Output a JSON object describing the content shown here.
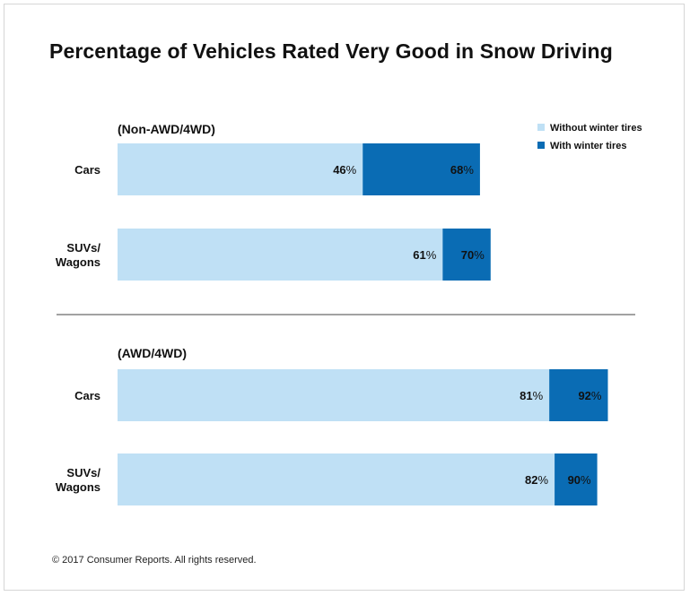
{
  "title": "Percentage of Vehicles Rated Very Good in Snow Driving",
  "footer": "© 2017 Consumer Reports. All rights reserved.",
  "colors": {
    "without": "#bfe0f5",
    "with": "#0a6cb4"
  },
  "legend": {
    "position": "top-right"
  },
  "chart_data": {
    "type": "bar",
    "orientation": "horizontal",
    "stacked": true,
    "value_suffix": "%",
    "legend": [
      "Without winter tires",
      "With winter tires"
    ],
    "groups": [
      {
        "label": "(Non-AWD/4WD)",
        "categories": [
          "Cars",
          "SUVs/\nWagons"
        ],
        "series": [
          {
            "name": "Without winter tires",
            "values": [
              46,
              61
            ]
          },
          {
            "name": "With winter tires",
            "values": [
              68,
              70
            ]
          }
        ]
      },
      {
        "label": "(AWD/4WD)",
        "categories": [
          "Cars",
          "SUVs/\nWagons"
        ],
        "series": [
          {
            "name": "Without winter tires",
            "values": [
              81,
              82
            ]
          },
          {
            "name": "With winter tires",
            "values": [
              92,
              90
            ]
          }
        ]
      }
    ]
  }
}
